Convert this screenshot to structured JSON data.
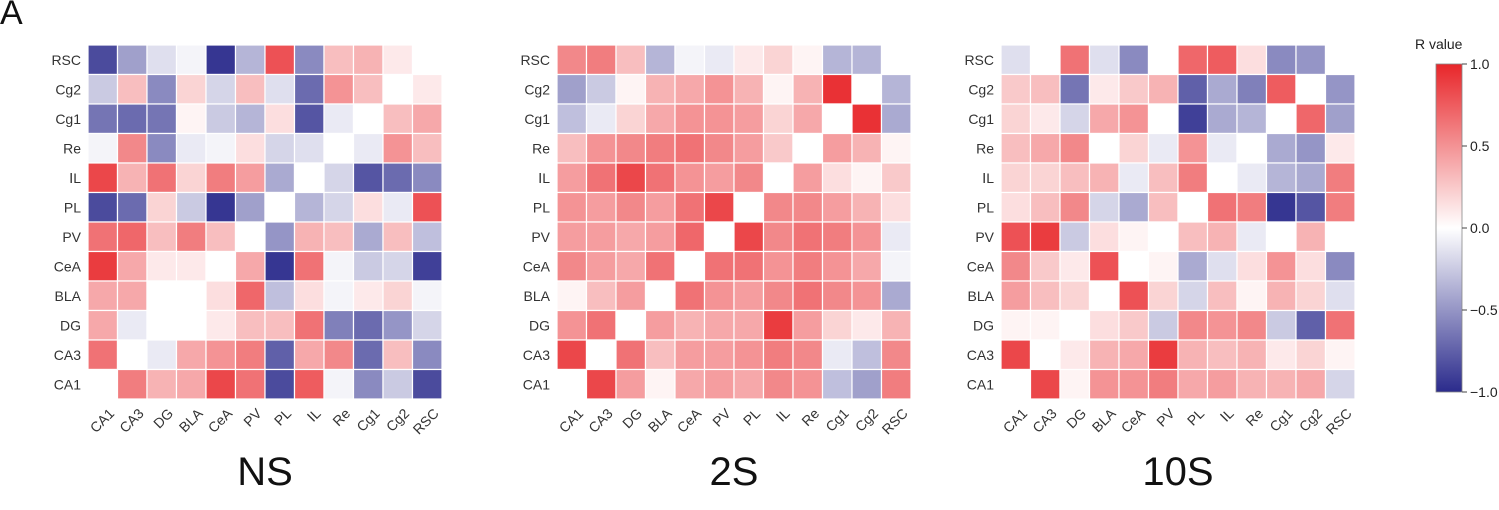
{
  "panel_label": "A",
  "legend": {
    "title": "R value",
    "ticks": [
      1.0,
      0.5,
      0.0,
      -0.5,
      -1.0
    ],
    "tick_labels": [
      "1.0",
      "0.5",
      "0.0",
      "−0.5",
      "−1.0"
    ],
    "colors": {
      "low": "#2b2b8c",
      "mid": "#ffffff",
      "high": "#e8262a"
    }
  },
  "chart_data": [
    {
      "type": "heatmap",
      "title": "NS",
      "x_categories": [
        "CA1",
        "CA3",
        "DG",
        "BLA",
        "CeA",
        "PV",
        "PL",
        "IL",
        "Re",
        "Cg1",
        "Cg2",
        "RSC"
      ],
      "y_categories": [
        "RSC",
        "Cg2",
        "Cg1",
        "Re",
        "IL",
        "PL",
        "PV",
        "CeA",
        "BLA",
        "DG",
        "CA3",
        "CA1"
      ],
      "y_tick_labels": [
        "RSC",
        "Cg2",
        "Cg1",
        "Re",
        "ⅠL",
        "PL",
        "PV",
        "CeA",
        "BLA",
        "DG",
        "CA3",
        "CA1"
      ],
      "x_tick_labels": [
        "CA1",
        "CA3",
        "DG",
        "BLA",
        "CeA",
        "PV",
        "PL",
        "ⅠL",
        "Re",
        "Cg1",
        "Cg2",
        "RSC"
      ],
      "values": [
        [
          -0.85,
          -0.45,
          -0.15,
          -0.05,
          -0.95,
          -0.35,
          0.8,
          -0.55,
          0.3,
          0.35,
          0.1,
          null
        ],
        [
          -0.25,
          0.3,
          -0.55,
          0.2,
          -0.2,
          0.3,
          -0.15,
          -0.7,
          0.5,
          0.3,
          null,
          0.1
        ],
        [
          -0.65,
          -0.7,
          -0.65,
          0.05,
          -0.25,
          -0.35,
          0.15,
          -0.8,
          -0.1,
          null,
          0.3,
          0.4
        ],
        [
          -0.05,
          0.55,
          -0.55,
          -0.1,
          -0.05,
          0.15,
          -0.2,
          -0.15,
          null,
          -0.1,
          0.5,
          0.3
        ],
        [
          0.85,
          0.35,
          0.65,
          0.2,
          0.6,
          0.45,
          -0.4,
          null,
          -0.2,
          -0.8,
          -0.7,
          -0.55
        ],
        [
          -0.85,
          -0.7,
          0.2,
          -0.25,
          -0.95,
          -0.45,
          null,
          -0.35,
          -0.2,
          0.15,
          -0.1,
          0.8
        ],
        [
          0.65,
          0.7,
          0.3,
          0.6,
          0.3,
          null,
          -0.5,
          0.35,
          0.3,
          -0.4,
          0.3,
          -0.3
        ],
        [
          0.9,
          0.4,
          0.1,
          0.1,
          null,
          0.4,
          -0.95,
          0.65,
          -0.05,
          -0.25,
          -0.2,
          -0.9
        ],
        [
          0.4,
          0.4,
          0.0,
          null,
          0.15,
          0.7,
          -0.3,
          0.15,
          -0.05,
          0.1,
          0.2,
          -0.05
        ],
        [
          0.4,
          -0.1,
          null,
          0.0,
          0.1,
          0.3,
          0.3,
          0.65,
          -0.6,
          -0.7,
          -0.5,
          -0.2
        ],
        [
          0.65,
          null,
          -0.1,
          0.4,
          0.5,
          0.6,
          -0.75,
          0.4,
          0.55,
          -0.7,
          0.3,
          -0.55
        ],
        [
          null,
          0.6,
          0.35,
          0.4,
          0.85,
          0.65,
          -0.85,
          0.75,
          -0.05,
          -0.55,
          -0.25,
          -0.85
        ]
      ]
    },
    {
      "type": "heatmap",
      "title": "2S",
      "x_categories": [
        "CA1",
        "CA3",
        "DG",
        "BLA",
        "CeA",
        "PV",
        "PL",
        "IL",
        "Re",
        "Cg1",
        "Cg2",
        "RSC"
      ],
      "y_categories": [
        "RSC",
        "Cg2",
        "Cg1",
        "Re",
        "IL",
        "PL",
        "PV",
        "CeA",
        "BLA",
        "DG",
        "CA3",
        "CA1"
      ],
      "y_tick_labels": [
        "RSC",
        "Cg2",
        "Cg1",
        "Re",
        "ⅠL",
        "PL",
        "PV",
        "CeA",
        "BLA",
        "DG",
        "CA3",
        "CA1"
      ],
      "x_tick_labels": [
        "CA1",
        "CA3",
        "DG",
        "BLA",
        "CeA",
        "PV",
        "PL",
        "ⅠL",
        "Re",
        "Cg1",
        "Cg2",
        "RSC"
      ],
      "values": [
        [
          0.55,
          0.6,
          0.3,
          -0.35,
          -0.05,
          -0.1,
          0.1,
          0.2,
          0.05,
          -0.35,
          -0.35,
          null
        ],
        [
          -0.45,
          -0.25,
          0.05,
          0.35,
          0.4,
          0.5,
          0.35,
          0.05,
          0.35,
          0.95,
          null,
          -0.35
        ],
        [
          -0.3,
          -0.1,
          0.2,
          0.4,
          0.5,
          0.5,
          0.45,
          0.2,
          0.4,
          null,
          0.95,
          -0.4
        ],
        [
          0.3,
          0.5,
          0.55,
          0.6,
          0.65,
          0.55,
          0.45,
          0.25,
          null,
          0.45,
          0.35,
          0.05
        ],
        [
          0.45,
          0.65,
          0.85,
          0.65,
          0.5,
          0.45,
          0.55,
          null,
          0.45,
          0.15,
          0.05,
          0.25
        ],
        [
          0.5,
          0.45,
          0.55,
          0.45,
          0.65,
          0.85,
          null,
          0.55,
          0.55,
          0.45,
          0.35,
          0.15
        ],
        [
          0.45,
          0.45,
          0.4,
          0.45,
          0.7,
          null,
          0.85,
          0.55,
          0.65,
          0.6,
          0.5,
          -0.1
        ],
        [
          0.55,
          0.45,
          0.4,
          0.65,
          null,
          0.65,
          0.65,
          0.5,
          0.6,
          0.5,
          0.4,
          -0.05
        ],
        [
          0.05,
          0.3,
          0.45,
          null,
          0.65,
          0.5,
          0.45,
          0.55,
          0.65,
          0.55,
          0.5,
          -0.4
        ],
        [
          0.5,
          0.65,
          null,
          0.45,
          0.35,
          0.4,
          0.4,
          0.9,
          0.45,
          0.2,
          0.1,
          0.35
        ],
        [
          0.85,
          null,
          0.65,
          0.3,
          0.45,
          0.45,
          0.5,
          0.6,
          0.55,
          -0.1,
          -0.3,
          0.55
        ],
        [
          null,
          0.85,
          0.45,
          0.05,
          0.4,
          0.45,
          0.4,
          0.55,
          0.5,
          -0.3,
          -0.45,
          0.6
        ]
      ]
    },
    {
      "type": "heatmap",
      "title": "10S",
      "x_categories": [
        "CA1",
        "CA3",
        "DG",
        "BLA",
        "CeA",
        "PV",
        "PL",
        "IL",
        "Re",
        "Cg1",
        "Cg2",
        "RSC"
      ],
      "y_categories": [
        "RSC",
        "Cg2",
        "Cg1",
        "Re",
        "IL",
        "PL",
        "PV",
        "CeA",
        "BLA",
        "DG",
        "CA3",
        "CA1"
      ],
      "y_tick_labels": [
        "RSC",
        "Cg2",
        "Cg1",
        "Re",
        "ⅠL",
        "PL",
        "PV",
        "CeA",
        "BLA",
        "DG",
        "CA3",
        "CA1"
      ],
      "x_tick_labels": [
        "CA1",
        "CA3",
        "DG",
        "BLA",
        "CeA",
        "PV",
        "PL",
        "ⅠL",
        "Re",
        "Cg1",
        "Cg2",
        "RSC"
      ],
      "values": [
        [
          -0.15,
          0.0,
          0.65,
          -0.15,
          -0.55,
          0.0,
          0.7,
          0.75,
          0.15,
          -0.55,
          -0.5,
          null
        ],
        [
          0.25,
          0.3,
          -0.65,
          0.1,
          0.25,
          0.35,
          -0.75,
          -0.4,
          -0.6,
          0.75,
          null,
          -0.5
        ],
        [
          0.2,
          0.1,
          -0.2,
          0.4,
          0.5,
          0.0,
          -0.9,
          -0.4,
          -0.35,
          null,
          0.7,
          -0.45
        ],
        [
          0.3,
          0.4,
          0.55,
          0.0,
          0.2,
          -0.1,
          0.5,
          -0.1,
          null,
          -0.4,
          -0.5,
          0.1
        ],
        [
          0.2,
          0.2,
          0.3,
          0.35,
          -0.1,
          0.3,
          0.6,
          null,
          -0.1,
          -0.35,
          -0.4,
          0.6
        ],
        [
          0.15,
          0.3,
          0.55,
          -0.2,
          -0.4,
          0.3,
          null,
          0.65,
          0.6,
          -0.95,
          -0.8,
          0.6
        ],
        [
          0.8,
          0.9,
          -0.25,
          0.15,
          0.05,
          null,
          0.3,
          0.35,
          -0.1,
          0.0,
          0.35,
          0.0
        ],
        [
          0.55,
          0.25,
          0.1,
          0.8,
          null,
          0.05,
          -0.4,
          -0.15,
          0.15,
          0.5,
          0.15,
          -0.55
        ],
        [
          0.45,
          0.3,
          0.2,
          null,
          0.8,
          0.2,
          -0.2,
          0.3,
          0.05,
          0.35,
          0.2,
          -0.15
        ],
        [
          0.05,
          0.05,
          null,
          0.15,
          0.25,
          -0.25,
          0.55,
          0.5,
          0.55,
          -0.25,
          -0.75,
          0.65
        ],
        [
          0.85,
          null,
          0.1,
          0.35,
          0.4,
          0.9,
          0.35,
          0.3,
          0.35,
          0.1,
          0.2,
          0.05
        ],
        [
          null,
          0.85,
          0.05,
          0.5,
          0.5,
          0.6,
          0.4,
          0.45,
          0.35,
          0.35,
          0.4,
          -0.2
        ]
      ]
    }
  ]
}
